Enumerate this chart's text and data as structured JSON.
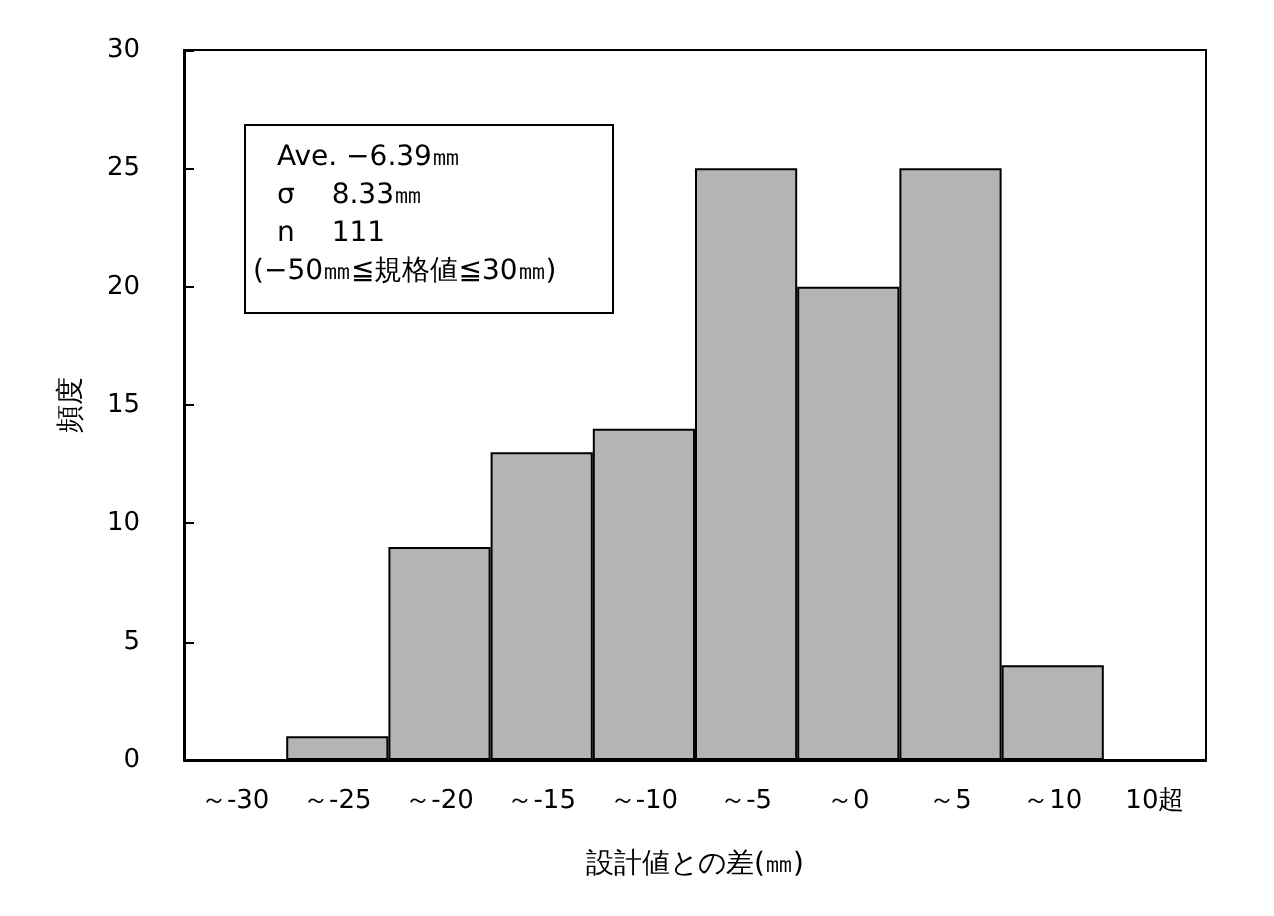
{
  "chart_data": {
    "type": "bar",
    "xlabel": "設計値との差(㎜)",
    "ylabel": "頻度",
    "categories": [
      "～-30",
      "～-25",
      "～-20",
      "～-15",
      "～-10",
      "～-5",
      "～0",
      "～5",
      "～10",
      "10超"
    ],
    "values": [
      0,
      1,
      9,
      13,
      14,
      25,
      20,
      25,
      4,
      0
    ],
    "color": "#b4b4b4",
    "ylim": [
      0,
      30
    ],
    "yticks": [
      0,
      5,
      10,
      15,
      20,
      25,
      30
    ],
    "grid": false,
    "annotations": [
      "Ave. −6.39㎜",
      "σ　 8.33㎜",
      "n　 111",
      "(−50㎜≦規格値≦30㎜)"
    ]
  }
}
